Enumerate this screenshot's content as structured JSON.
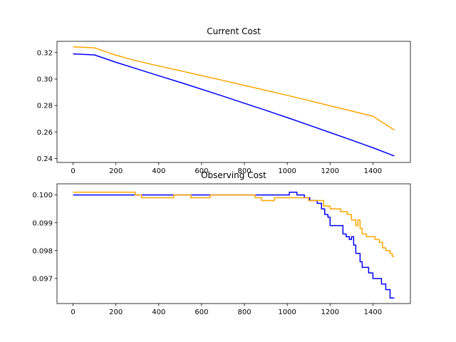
{
  "chart_data": [
    {
      "type": "line",
      "title": "Current Cost",
      "xlabel": "",
      "ylabel": "",
      "xlim": [
        -75,
        1575
      ],
      "ylim": [
        0.237,
        0.3285
      ],
      "xticks": [
        0,
        200,
        400,
        600,
        800,
        1000,
        1200,
        1400
      ],
      "yticks": [
        0.24,
        0.26,
        0.28,
        0.3,
        0.32
      ],
      "ytick_labels": [
        "0.24",
        "0.26",
        "0.28",
        "0.30",
        "0.32"
      ],
      "grid": false,
      "series": [
        {
          "color": "#0000ff",
          "x": [
            0,
            100,
            200,
            300,
            400,
            500,
            600,
            700,
            800,
            900,
            1000,
            1100,
            1200,
            1300,
            1400,
            1500
          ],
          "y": [
            0.319,
            0.3182,
            0.3127,
            0.3076,
            0.3025,
            0.2975,
            0.2923,
            0.2871,
            0.2817,
            0.2764,
            0.2709,
            0.2653,
            0.2596,
            0.2539,
            0.2481,
            0.2419
          ]
        },
        {
          "color": "#ffa500",
          "x": [
            0,
            100,
            150,
            200,
            300,
            400,
            500,
            600,
            700,
            800,
            900,
            1000,
            1100,
            1200,
            1300,
            1400,
            1500
          ],
          "y": [
            0.3243,
            0.3236,
            0.3208,
            0.318,
            0.3136,
            0.3099,
            0.3063,
            0.3026,
            0.299,
            0.2952,
            0.2915,
            0.2877,
            0.2838,
            0.2798,
            0.2759,
            0.2719,
            0.2615
          ]
        }
      ]
    },
    {
      "type": "line",
      "title": "Observing Cost",
      "xlabel": "",
      "ylabel": "",
      "xlim": [
        -75,
        1575
      ],
      "ylim": [
        0.0961,
        0.1004
      ],
      "xticks": [
        0,
        200,
        400,
        600,
        800,
        1000,
        1200,
        1400
      ],
      "yticks": [
        0.097,
        0.098,
        0.099,
        0.1
      ],
      "ytick_labels": [
        "0.097",
        "0.098",
        "0.099",
        "0.100"
      ],
      "grid": false,
      "series": [
        {
          "color": "#0000ff",
          "step": true,
          "x": [
            0,
            1010,
            1045,
            1080,
            1105,
            1140,
            1160,
            1175,
            1190,
            1200,
            1260,
            1275,
            1290,
            1300,
            1310,
            1320,
            1340,
            1350,
            1360,
            1380,
            1400,
            1440,
            1460,
            1480,
            1500
          ],
          "y": [
            0.1,
            0.1001,
            0.1,
            0.0999,
            0.0998,
            0.0997,
            0.0995,
            0.0993,
            0.0992,
            0.0989,
            0.0986,
            0.0985,
            0.0984,
            0.0985,
            0.0982,
            0.0979,
            0.0976,
            0.0974,
            0.0974,
            0.0972,
            0.097,
            0.0968,
            0.0966,
            0.0963,
            0.0963
          ]
        },
        {
          "color": "#ffa500",
          "step": true,
          "x": [
            0,
            290,
            320,
            470,
            550,
            640,
            850,
            880,
            940,
            1100,
            1170,
            1200,
            1250,
            1280,
            1300,
            1320,
            1330,
            1340,
            1350,
            1370,
            1410,
            1430,
            1445,
            1460,
            1480,
            1490,
            1500
          ],
          "y": [
            0.1001,
            0.1,
            0.0999,
            0.1,
            0.0999,
            0.1,
            0.0999,
            0.0998,
            0.0999,
            0.0998,
            0.0996,
            0.0995,
            0.0994,
            0.0993,
            0.0991,
            0.0989,
            0.0991,
            0.0988,
            0.0986,
            0.0985,
            0.0984,
            0.0983,
            0.0981,
            0.098,
            0.0979,
            0.0978,
            0.0978
          ]
        }
      ]
    }
  ]
}
